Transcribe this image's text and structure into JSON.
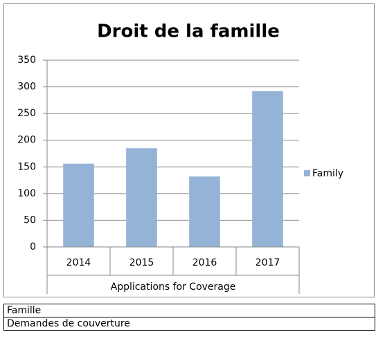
{
  "chart_data": {
    "type": "bar",
    "title": "Droit de la famille",
    "categories": [
      "2014",
      "2015",
      "2016",
      "2017"
    ],
    "x_group_label": "Applications for Coverage",
    "series": [
      {
        "name": "Family",
        "color": "#95b3d7",
        "values": [
          156,
          185,
          132,
          292
        ]
      }
    ],
    "ylim": [
      0,
      350
    ],
    "yticks": [
      0,
      50,
      100,
      150,
      200,
      250,
      300,
      350
    ],
    "grid": true,
    "legend": "right"
  },
  "table": {
    "rows": [
      [
        "Famille"
      ],
      [
        "Demandes de couverture"
      ]
    ]
  }
}
